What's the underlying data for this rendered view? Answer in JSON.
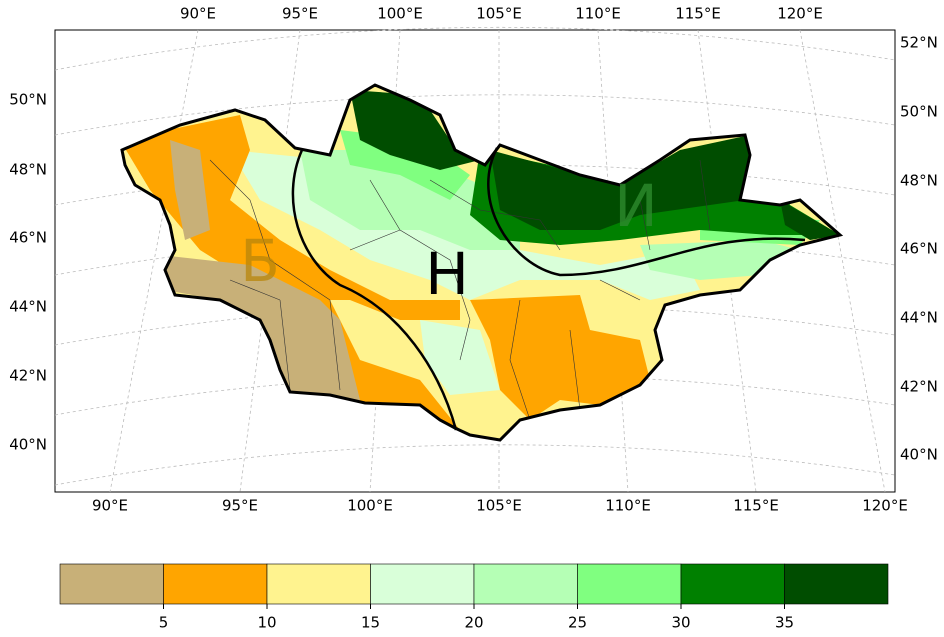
{
  "map": {
    "top_lon_labels": [
      "90°E",
      "95°E",
      "100°E",
      "105°E",
      "110°E",
      "115°E",
      "120°E"
    ],
    "bottom_lon_labels": [
      "90°E",
      "95°E",
      "100°E",
      "105°E",
      "110°E",
      "115°E",
      "120°E"
    ],
    "left_lat_labels": [
      "50°N",
      "48°N",
      "46°N",
      "44°N",
      "42°N",
      "40°N"
    ],
    "right_lat_labels": [
      "52°N",
      "50°N",
      "48°N",
      "46°N",
      "44°N",
      "42°N",
      "40°N"
    ],
    "regions": [
      "Б",
      "Н",
      "И"
    ]
  },
  "colorbar": {
    "range": [
      0,
      40
    ],
    "ticks": [
      5,
      10,
      15,
      20,
      25,
      30,
      35
    ],
    "colors": [
      "#c8b078",
      "#ffa500",
      "#fff38f",
      "#d9ffd9",
      "#b5ffb5",
      "#80ff80",
      "#008000",
      "#004d00"
    ]
  }
}
